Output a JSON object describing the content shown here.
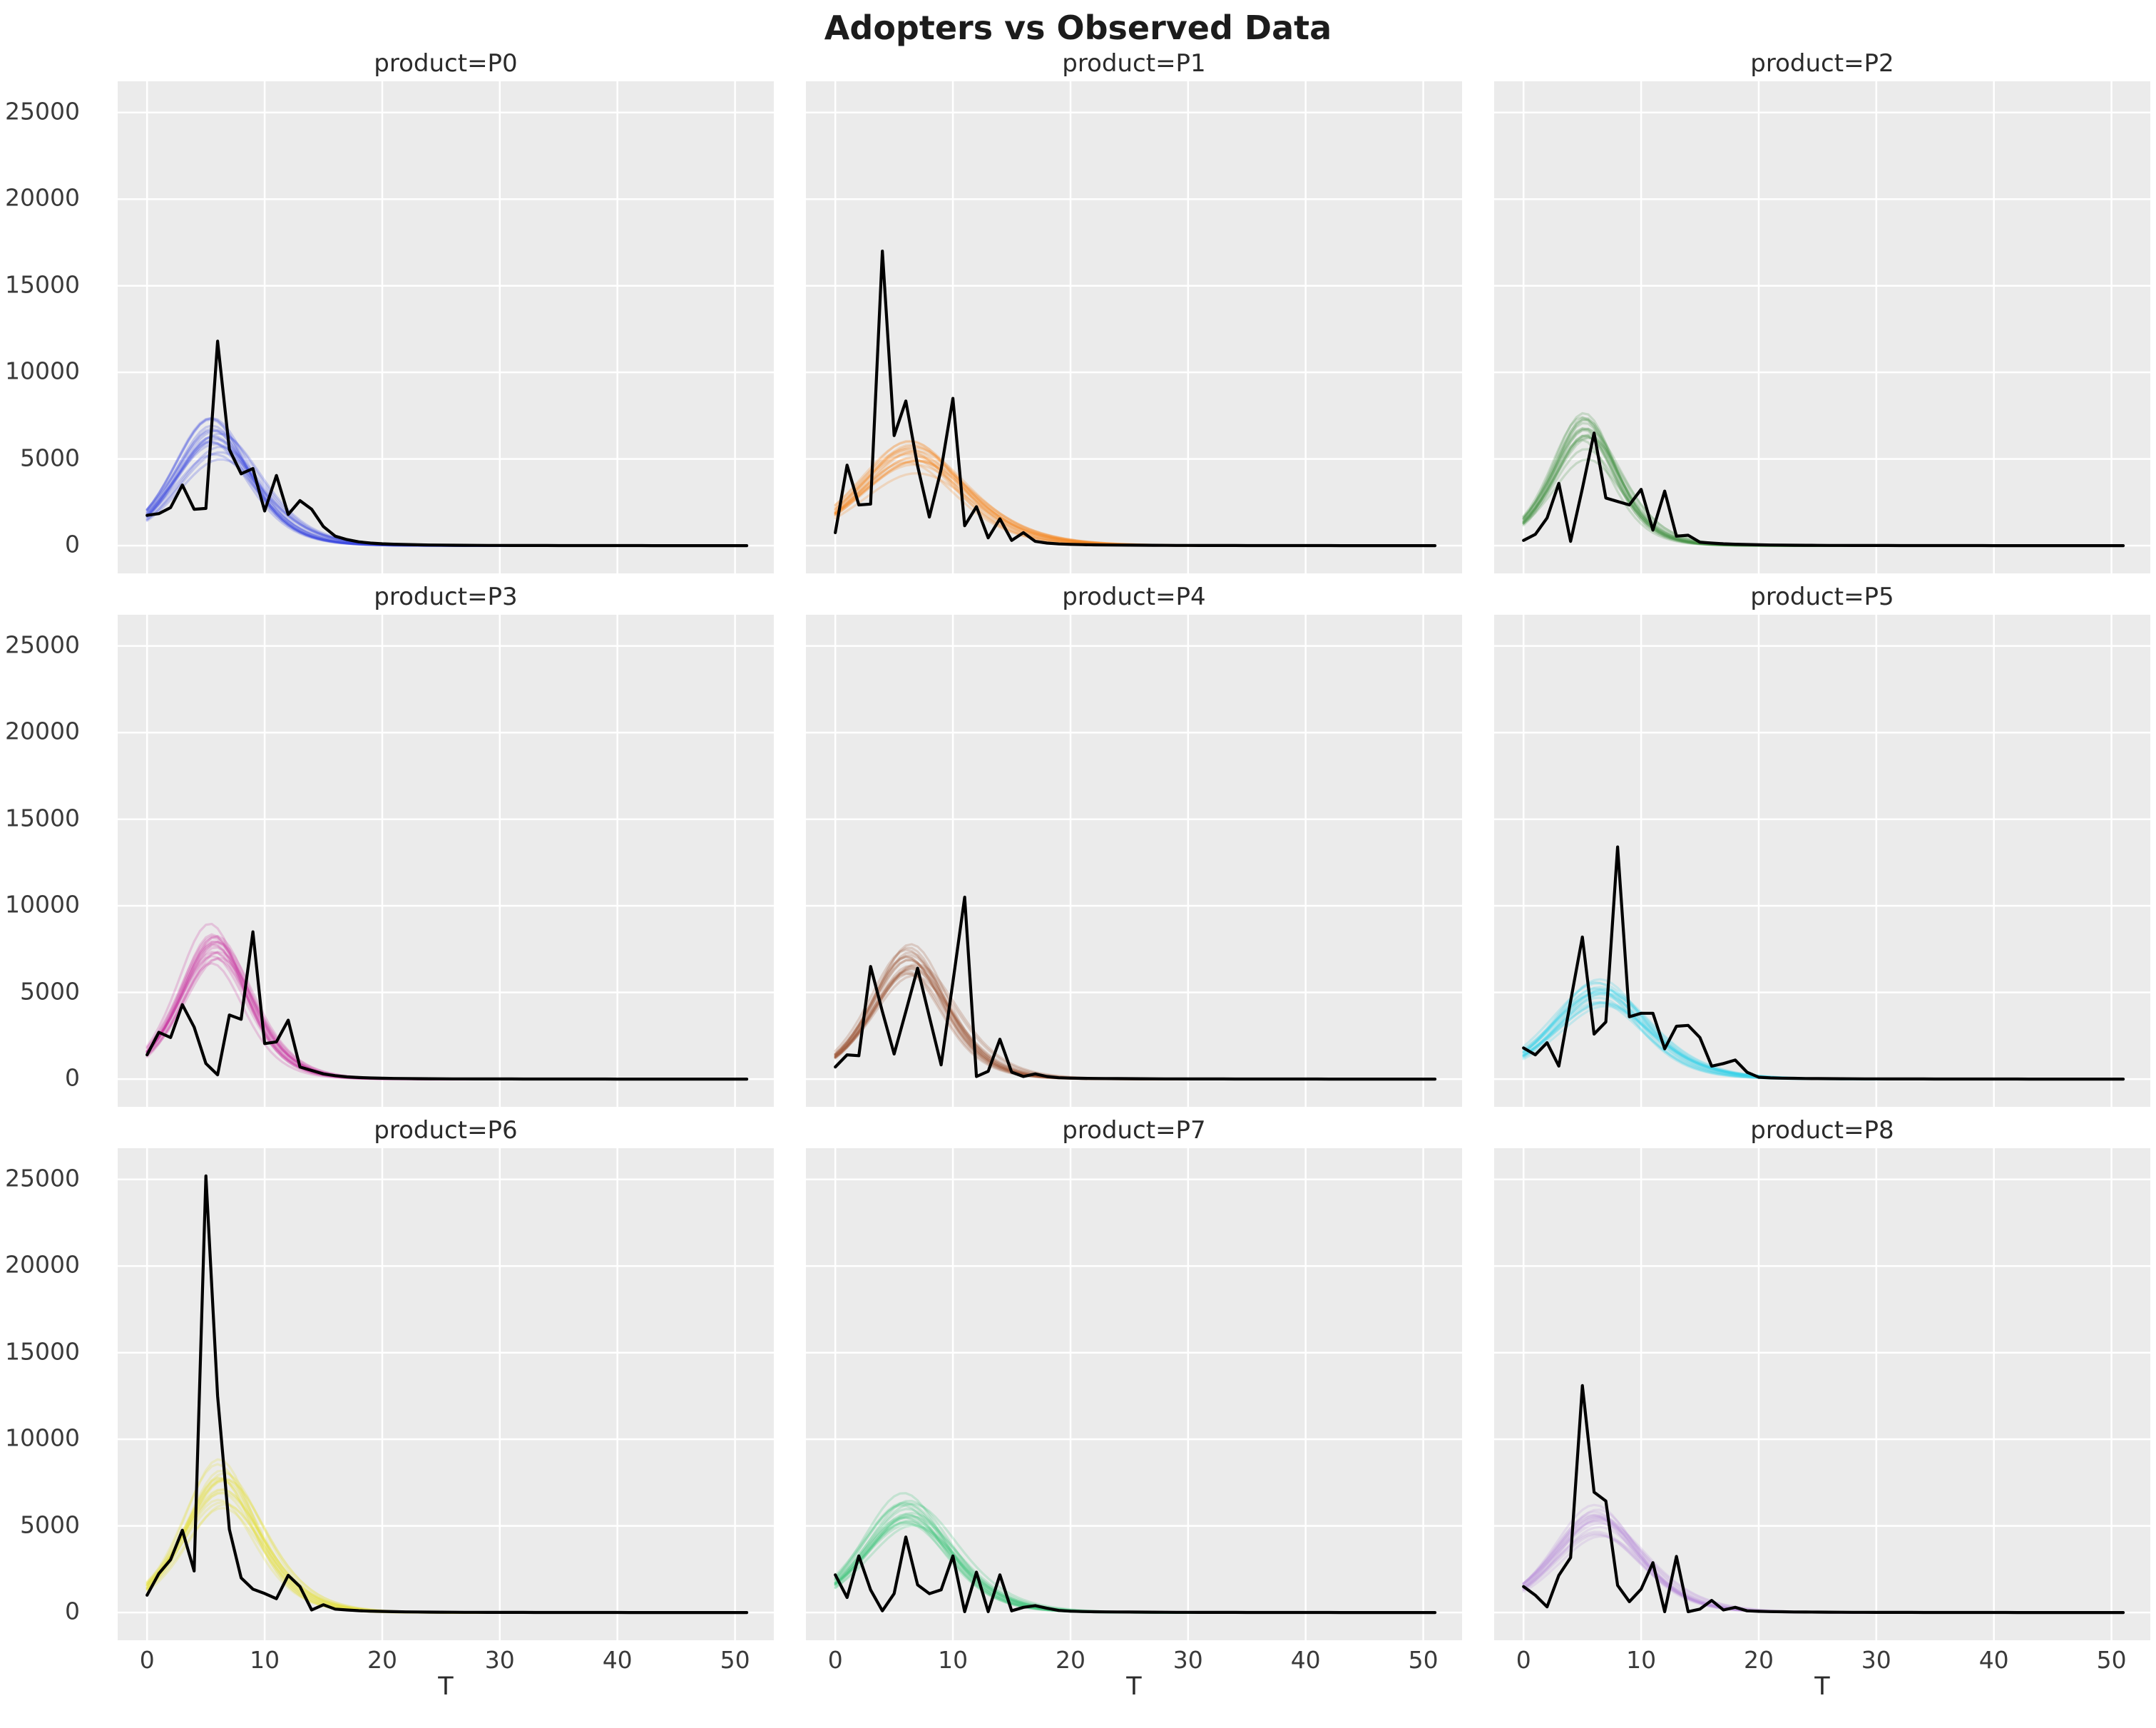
{
  "suptitle": "Adopters vs Observed Data",
  "xlabel": "T",
  "style": {
    "page_bg": "#ffffff",
    "panel_bg": "#ebebeb",
    "grid_color": "#ffffff",
    "observed_color": "#000000",
    "title_color": "#2b2b2b",
    "tick_color": "#3a3a3a",
    "sample_alpha": 0.22,
    "sample_width": 3.2,
    "observed_width": 4.2,
    "grid_width": 2.5
  },
  "axes": {
    "x_ticks": [
      0,
      10,
      20,
      30,
      40,
      50
    ],
    "y_ticks": [
      0,
      5000,
      10000,
      15000,
      20000,
      25000
    ],
    "xlim": [
      -2.5,
      53.3
    ],
    "ylim": [
      -1600,
      26800
    ],
    "grid": "major-white",
    "legend": "none",
    "shared_y": true,
    "shared_x": true
  },
  "chart_data": [
    {
      "type": "line",
      "product": "P0",
      "title": "product=P0",
      "color": "#3340dd",
      "x_start": 0,
      "x_step": 1,
      "posterior_band": {
        "model": "bass",
        "p": 0.033,
        "q": 0.4,
        "m": 55000,
        "n_samples": 18,
        "jitter": {
          "p": 0.12,
          "q": 0.1,
          "m": 0.16
        },
        "peak_value": 6400,
        "peak_t": 6
      },
      "observed": [
        1750,
        1850,
        2200,
        3500,
        2100,
        2150,
        11800,
        5550,
        4150,
        4450,
        2000,
        4050,
        1800,
        2600,
        2100,
        1100,
        550,
        350,
        220,
        150,
        110,
        85,
        65,
        50,
        40,
        32,
        26,
        22,
        18,
        15,
        13,
        11,
        10,
        9,
        8,
        7,
        6,
        6,
        5,
        5,
        4,
        4,
        4,
        3,
        3,
        3,
        3,
        2,
        2,
        2,
        2,
        2
      ]
    },
    {
      "type": "line",
      "product": "P1",
      "title": "product=P1",
      "color": "#f8821c",
      "x_start": 0,
      "x_step": 1,
      "posterior_band": {
        "model": "bass",
        "p": 0.035,
        "q": 0.3,
        "m": 56000,
        "n_samples": 18,
        "jitter": {
          "p": 0.12,
          "q": 0.1,
          "m": 0.16
        },
        "peak_value": 5300,
        "peak_t": 6.5
      },
      "observed": [
        750,
        4650,
        2350,
        2400,
        17000,
        6350,
        8350,
        4600,
        1650,
        4400,
        8500,
        1150,
        2250,
        450,
        1550,
        300,
        750,
        250,
        150,
        100,
        75,
        60,
        48,
        40,
        33,
        28,
        24,
        20,
        17,
        15,
        13,
        11,
        10,
        9,
        8,
        7,
        6,
        6,
        5,
        5,
        4,
        4,
        4,
        3,
        3,
        3,
        3,
        2,
        2,
        2,
        2,
        2
      ]
    },
    {
      "type": "line",
      "product": "P2",
      "title": "product=P2",
      "color": "#449144",
      "x_start": 0,
      "x_step": 1,
      "posterior_band": {
        "model": "bass",
        "p": 0.03,
        "q": 0.5,
        "m": 45000,
        "n_samples": 18,
        "jitter": {
          "p": 0.12,
          "q": 0.1,
          "m": 0.16
        },
        "peak_value": 6300,
        "peak_t": 5.3
      },
      "observed": [
        300,
        650,
        1600,
        3600,
        250,
        3300,
        6500,
        2750,
        2550,
        2350,
        3250,
        900,
        3150,
        550,
        600,
        200,
        150,
        110,
        85,
        65,
        50,
        40,
        32,
        26,
        22,
        18,
        15,
        13,
        11,
        10,
        9,
        8,
        7,
        6,
        6,
        5,
        5,
        4,
        4,
        4,
        3,
        3,
        3,
        3,
        2,
        2,
        2,
        2,
        2,
        2,
        2,
        2
      ]
    },
    {
      "type": "line",
      "product": "P3",
      "title": "product=P3",
      "color": "#c9319f",
      "x_start": 0,
      "x_step": 1,
      "posterior_band": {
        "model": "bass",
        "p": 0.027,
        "q": 0.47,
        "m": 55500,
        "n_samples": 18,
        "jitter": {
          "p": 0.12,
          "q": 0.1,
          "m": 0.16
        },
        "peak_value": 7300,
        "peak_t": 5.7
      },
      "observed": [
        1400,
        2700,
        2400,
        4300,
        3000,
        900,
        250,
        3700,
        3450,
        8500,
        2050,
        2150,
        3400,
        700,
        500,
        300,
        200,
        130,
        90,
        65,
        50,
        40,
        32,
        26,
        22,
        18,
        15,
        13,
        11,
        10,
        9,
        8,
        7,
        6,
        6,
        5,
        5,
        4,
        4,
        4,
        3,
        3,
        3,
        3,
        2,
        2,
        2,
        2,
        2,
        2,
        2,
        2
      ]
    },
    {
      "type": "line",
      "product": "P4",
      "title": "product=P4",
      "color": "#9a5230",
      "x_start": 0,
      "x_step": 1,
      "posterior_band": {
        "model": "bass",
        "p": 0.024,
        "q": 0.43,
        "m": 54000,
        "n_samples": 18,
        "jitter": {
          "p": 0.12,
          "q": 0.1,
          "m": 0.16
        },
        "peak_value": 6470,
        "peak_t": 6.4
      },
      "observed": [
        700,
        1400,
        1350,
        6500,
        3900,
        1450,
        3900,
        6400,
        3600,
        820,
        5600,
        10500,
        150,
        450,
        2300,
        400,
        150,
        300,
        150,
        80,
        60,
        48,
        40,
        33,
        28,
        24,
        20,
        17,
        15,
        13,
        11,
        10,
        9,
        8,
        7,
        6,
        6,
        5,
        5,
        4,
        4,
        4,
        3,
        3,
        3,
        3,
        2,
        2,
        2,
        2,
        2,
        2
      ]
    },
    {
      "type": "line",
      "product": "P5",
      "title": "product=P5",
      "color": "#30d0e6",
      "x_start": 0,
      "x_step": 1,
      "posterior_band": {
        "model": "bass",
        "p": 0.03,
        "q": 0.35,
        "m": 50000,
        "n_samples": 18,
        "jitter": {
          "p": 0.12,
          "q": 0.1,
          "m": 0.16
        },
        "peak_value": 5160,
        "peak_t": 6.5
      },
      "observed": [
        1800,
        1400,
        2100,
        750,
        4500,
        8200,
        2600,
        3300,
        13400,
        3600,
        3800,
        3800,
        1750,
        3050,
        3100,
        2400,
        750,
        900,
        1100,
        400,
        110,
        70,
        55,
        45,
        36,
        30,
        25,
        21,
        18,
        15,
        13,
        11,
        10,
        9,
        8,
        7,
        6,
        6,
        5,
        5,
        4,
        4,
        4,
        3,
        3,
        3,
        3,
        2,
        2,
        2,
        2,
        2
      ]
    },
    {
      "type": "line",
      "product": "P6",
      "title": "product=P6",
      "color": "#e4df33",
      "x_start": 0,
      "x_step": 1,
      "posterior_band": {
        "model": "bass",
        "p": 0.025,
        "q": 0.43,
        "m": 61500,
        "n_samples": 18,
        "jitter": {
          "p": 0.12,
          "q": 0.1,
          "m": 0.16
        },
        "peak_value": 7400,
        "peak_t": 6.2
      },
      "observed": [
        1000,
        2250,
        3050,
        4750,
        2400,
        25200,
        12500,
        4800,
        2000,
        1350,
        1100,
        800,
        2150,
        1500,
        150,
        450,
        200,
        150,
        110,
        85,
        65,
        50,
        40,
        32,
        26,
        22,
        18,
        15,
        13,
        11,
        10,
        9,
        8,
        7,
        6,
        6,
        5,
        5,
        4,
        4,
        4,
        3,
        3,
        3,
        3,
        2,
        2,
        2,
        2,
        2,
        2,
        2
      ]
    },
    {
      "type": "line",
      "product": "P7",
      "title": "product=P7",
      "color": "#36c377",
      "x_start": 0,
      "x_step": 1,
      "posterior_band": {
        "model": "bass",
        "p": 0.032,
        "q": 0.37,
        "m": 56000,
        "n_samples": 18,
        "jitter": {
          "p": 0.12,
          "q": 0.1,
          "m": 0.16
        },
        "peak_value": 6100,
        "peak_t": 6.1
      },
      "observed": [
        2180,
        870,
        3270,
        1310,
        100,
        1090,
        4360,
        1600,
        1090,
        1310,
        3270,
        50,
        2330,
        50,
        2180,
        100,
        300,
        400,
        250,
        120,
        80,
        60,
        48,
        40,
        33,
        28,
        24,
        20,
        17,
        15,
        13,
        11,
        10,
        9,
        8,
        7,
        6,
        6,
        5,
        5,
        4,
        4,
        4,
        3,
        3,
        3,
        3,
        2,
        2,
        2,
        2,
        2
      ]
    },
    {
      "type": "line",
      "product": "P8",
      "title": "product=P8",
      "color": "#bb93d9",
      "x_start": 0,
      "x_step": 1,
      "posterior_band": {
        "model": "bass",
        "p": 0.03,
        "q": 0.36,
        "m": 49000,
        "n_samples": 18,
        "jitter": {
          "p": 0.12,
          "q": 0.1,
          "m": 0.16
        },
        "peak_value": 5180,
        "peak_t": 6.4
      },
      "observed": [
        1500,
        1000,
        330,
        2150,
        3170,
        13100,
        6950,
        6440,
        1570,
        625,
        1350,
        2880,
        50,
        3240,
        50,
        200,
        700,
        150,
        300,
        100,
        70,
        55,
        45,
        36,
        30,
        25,
        21,
        18,
        15,
        13,
        11,
        10,
        9,
        8,
        7,
        6,
        6,
        5,
        5,
        4,
        4,
        4,
        3,
        3,
        3,
        3,
        2,
        2,
        2,
        2,
        2,
        2
      ]
    }
  ]
}
